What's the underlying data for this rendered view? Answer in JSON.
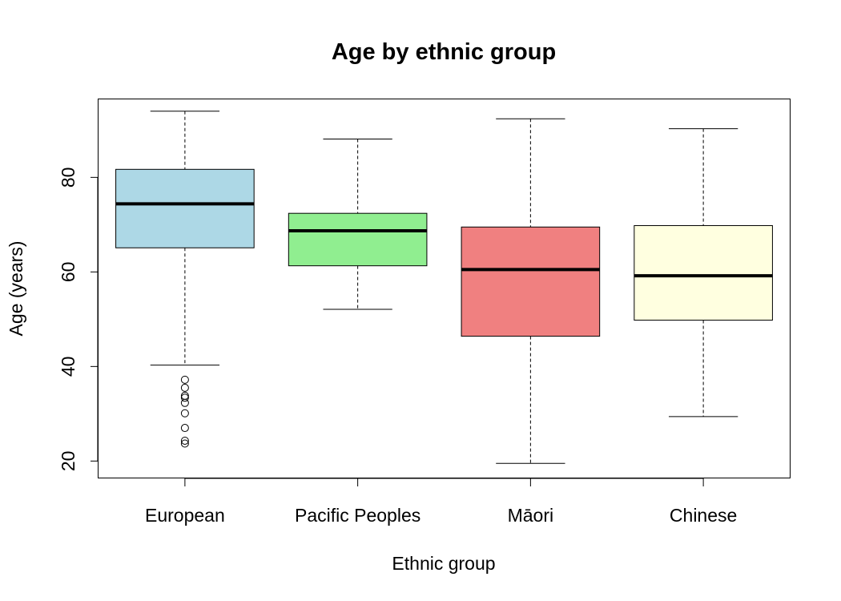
{
  "chart_data": {
    "type": "boxplot",
    "title": "Age by ethnic group",
    "xlabel": "Ethnic group",
    "ylabel": "Age (years)",
    "ylim": [
      16.5,
      96.5
    ],
    "yticks": [
      20,
      40,
      60,
      80
    ],
    "grid": false,
    "categories": [
      "European",
      "Pacific Peoples",
      "Māori",
      "Chinese"
    ],
    "colors": [
      "#ADD8E6",
      "#90EE90",
      "#F08080",
      "#FFFFE0"
    ],
    "boxes": [
      {
        "name": "European",
        "whisker_low": 40.3,
        "q1": 65.1,
        "median": 74.4,
        "q3": 81.7,
        "whisker_high": 94.0,
        "outliers": [
          37.2,
          35.5,
          33.8,
          33.4,
          32.3,
          30.1,
          27.0,
          24.3,
          23.7
        ]
      },
      {
        "name": "Pacific Peoples",
        "whisker_low": 52.1,
        "q1": 61.3,
        "median": 68.7,
        "q3": 72.4,
        "whisker_high": 88.1,
        "outliers": []
      },
      {
        "name": "Māori",
        "whisker_low": 19.5,
        "q1": 46.4,
        "median": 60.5,
        "q3": 69.5,
        "whisker_high": 92.4,
        "outliers": []
      },
      {
        "name": "Chinese",
        "whisker_low": 29.4,
        "q1": 49.8,
        "median": 59.2,
        "q3": 69.8,
        "whisker_high": 90.3,
        "outliers": []
      }
    ]
  }
}
